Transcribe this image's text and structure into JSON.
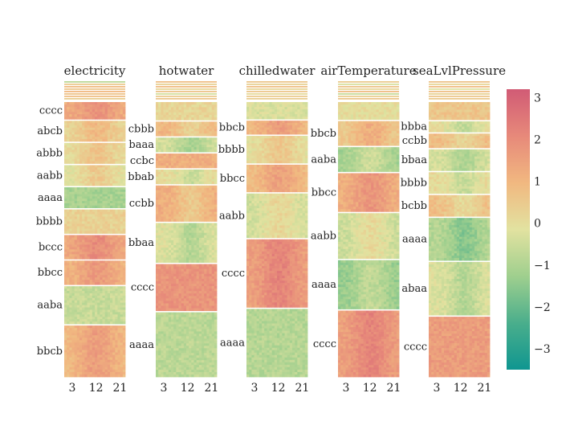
{
  "chart_data": {
    "type": "heatmap",
    "x_ticks": [
      3,
      12,
      21
    ],
    "xlim": [
      0,
      23
    ],
    "colorscale": [
      "#0f9690",
      "#4aae8c",
      "#9fcf8e",
      "#e2e2a0",
      "#f1b880",
      "#e7897a",
      "#d15b75"
    ],
    "zlim": [
      -3.5,
      3.2
    ],
    "colorbar_ticks": [
      {
        "value": 3,
        "label": "3"
      },
      {
        "value": 2,
        "label": "2"
      },
      {
        "value": 1,
        "label": "1"
      },
      {
        "value": 0,
        "label": "0"
      },
      {
        "value": -1,
        "label": "−1"
      },
      {
        "value": -2,
        "label": "−2"
      },
      {
        "value": -3,
        "label": "−3"
      }
    ],
    "panels": [
      {
        "title": "electricity",
        "stripe_values": [
          -0.8,
          0.5,
          0.9,
          0.6,
          1.0,
          0.7,
          0.8,
          0.4
        ],
        "segments": [
          {
            "label": "cccc",
            "size": 5,
            "value": 1.2,
            "profile": "peak"
          },
          {
            "label": "abcb",
            "size": 6,
            "value": 0.2,
            "profile": "peak"
          },
          {
            "label": "abbb",
            "size": 6,
            "value": 0.0,
            "profile": "peak"
          },
          {
            "label": "aabb",
            "size": 6,
            "value": -0.2,
            "profile": "peak"
          },
          {
            "label": "aaaa",
            "size": 6,
            "value": -1.1,
            "profile": "flat"
          },
          {
            "label": "bbbb",
            "size": 7,
            "value": 0.3,
            "profile": "flat"
          },
          {
            "label": "bccc",
            "size": 7,
            "value": 1.3,
            "profile": "peak"
          },
          {
            "label": "bbcc",
            "size": 7,
            "value": 1.0,
            "profile": "peak"
          },
          {
            "label": "aaba",
            "size": 11,
            "value": -0.6,
            "profile": "flat"
          },
          {
            "label": "bbcb",
            "size": 15,
            "value": 0.9,
            "profile": "peak"
          }
        ]
      },
      {
        "title": "hotwater",
        "stripe_values": [
          0.8,
          0.3,
          0.9,
          0.2,
          0.7,
          -0.4,
          0.5,
          0.6
        ],
        "segments": [
          {
            "label": "",
            "size": 5,
            "value": 0.2,
            "profile": "flat"
          },
          {
            "label": "cbbb",
            "size": 4,
            "value": 1.0,
            "profile": "drop"
          },
          {
            "label": "baaa",
            "size": 4,
            "value": -0.4,
            "profile": "drop"
          },
          {
            "label": "ccbc",
            "size": 4,
            "value": 1.2,
            "profile": "flat"
          },
          {
            "label": "bbab",
            "size": 4,
            "value": 0.1,
            "profile": "drop"
          },
          {
            "label": "ccbb",
            "size": 10,
            "value": 1.2,
            "profile": "drop"
          },
          {
            "label": "bbaa",
            "size": 11,
            "value": -0.2,
            "profile": "drop"
          },
          {
            "label": "cccc",
            "size": 13,
            "value": 1.8,
            "profile": "flat"
          },
          {
            "label": "aaaa",
            "size": 18,
            "value": -0.8,
            "profile": "flat"
          }
        ]
      },
      {
        "title": "chilledwater",
        "stripe_values": [
          0.6,
          0.3,
          0.8,
          0.2,
          0.6,
          0.1,
          0.5,
          0.4
        ],
        "segments": [
          {
            "label": "",
            "size": 5,
            "value": -0.3,
            "profile": "flat"
          },
          {
            "label": "bbcb",
            "size": 4,
            "value": 0.9,
            "profile": "peak"
          },
          {
            "label": "bbbb",
            "size": 8,
            "value": -0.1,
            "profile": "peak"
          },
          {
            "label": "bbcc",
            "size": 8,
            "value": 0.8,
            "profile": "peak"
          },
          {
            "label": "aabb",
            "size": 13,
            "value": -0.5,
            "profile": "peak"
          },
          {
            "label": "cccc",
            "size": 20,
            "value": 1.5,
            "profile": "peak"
          },
          {
            "label": "aaaa",
            "size": 20,
            "value": -0.9,
            "profile": "flat"
          }
        ]
      },
      {
        "title": "airTemperature",
        "stripe_values": [
          0.5,
          -0.3,
          0.7,
          0.2,
          0.9,
          -0.6,
          0.4,
          0.6
        ],
        "segments": [
          {
            "label": "",
            "size": 5,
            "value": 0.0,
            "profile": "flat"
          },
          {
            "label": "bbcb",
            "size": 7,
            "value": 0.5,
            "profile": "peak"
          },
          {
            "label": "aaba",
            "size": 7,
            "value": -1.2,
            "profile": "peak"
          },
          {
            "label": "bbcc",
            "size": 11,
            "value": 1.1,
            "profile": "peak"
          },
          {
            "label": "aabb",
            "size": 13,
            "value": -0.6,
            "profile": "peak"
          },
          {
            "label": "aaaa",
            "size": 14,
            "value": -1.4,
            "profile": "peak"
          },
          {
            "label": "cccc",
            "size": 19,
            "value": 1.5,
            "profile": "peak"
          }
        ]
      },
      {
        "title": "seaLvlPressure",
        "stripe_values": [
          0.7,
          0.2,
          0.9,
          -0.2,
          0.8,
          0.3,
          0.6,
          0.5
        ],
        "segments": [
          {
            "label": "",
            "size": 5,
            "value": 0.6,
            "profile": "flat"
          },
          {
            "label": "bbba",
            "size": 3,
            "value": 0.0,
            "profile": "drop"
          },
          {
            "label": "ccbb",
            "size": 4,
            "value": 0.9,
            "profile": "drop"
          },
          {
            "label": "bbaa",
            "size": 6,
            "value": -0.3,
            "profile": "drop"
          },
          {
            "label": "bbbb",
            "size": 6,
            "value": 0.1,
            "profile": "drop"
          },
          {
            "label": "bcbb",
            "size": 6,
            "value": 0.8,
            "profile": "drop"
          },
          {
            "label": "aaaa",
            "size": 12,
            "value": -0.9,
            "profile": "drop"
          },
          {
            "label": "abaa",
            "size": 15,
            "value": -0.2,
            "profile": "drop"
          },
          {
            "label": "cccc",
            "size": 17,
            "value": 1.6,
            "profile": "flat"
          }
        ]
      }
    ]
  }
}
